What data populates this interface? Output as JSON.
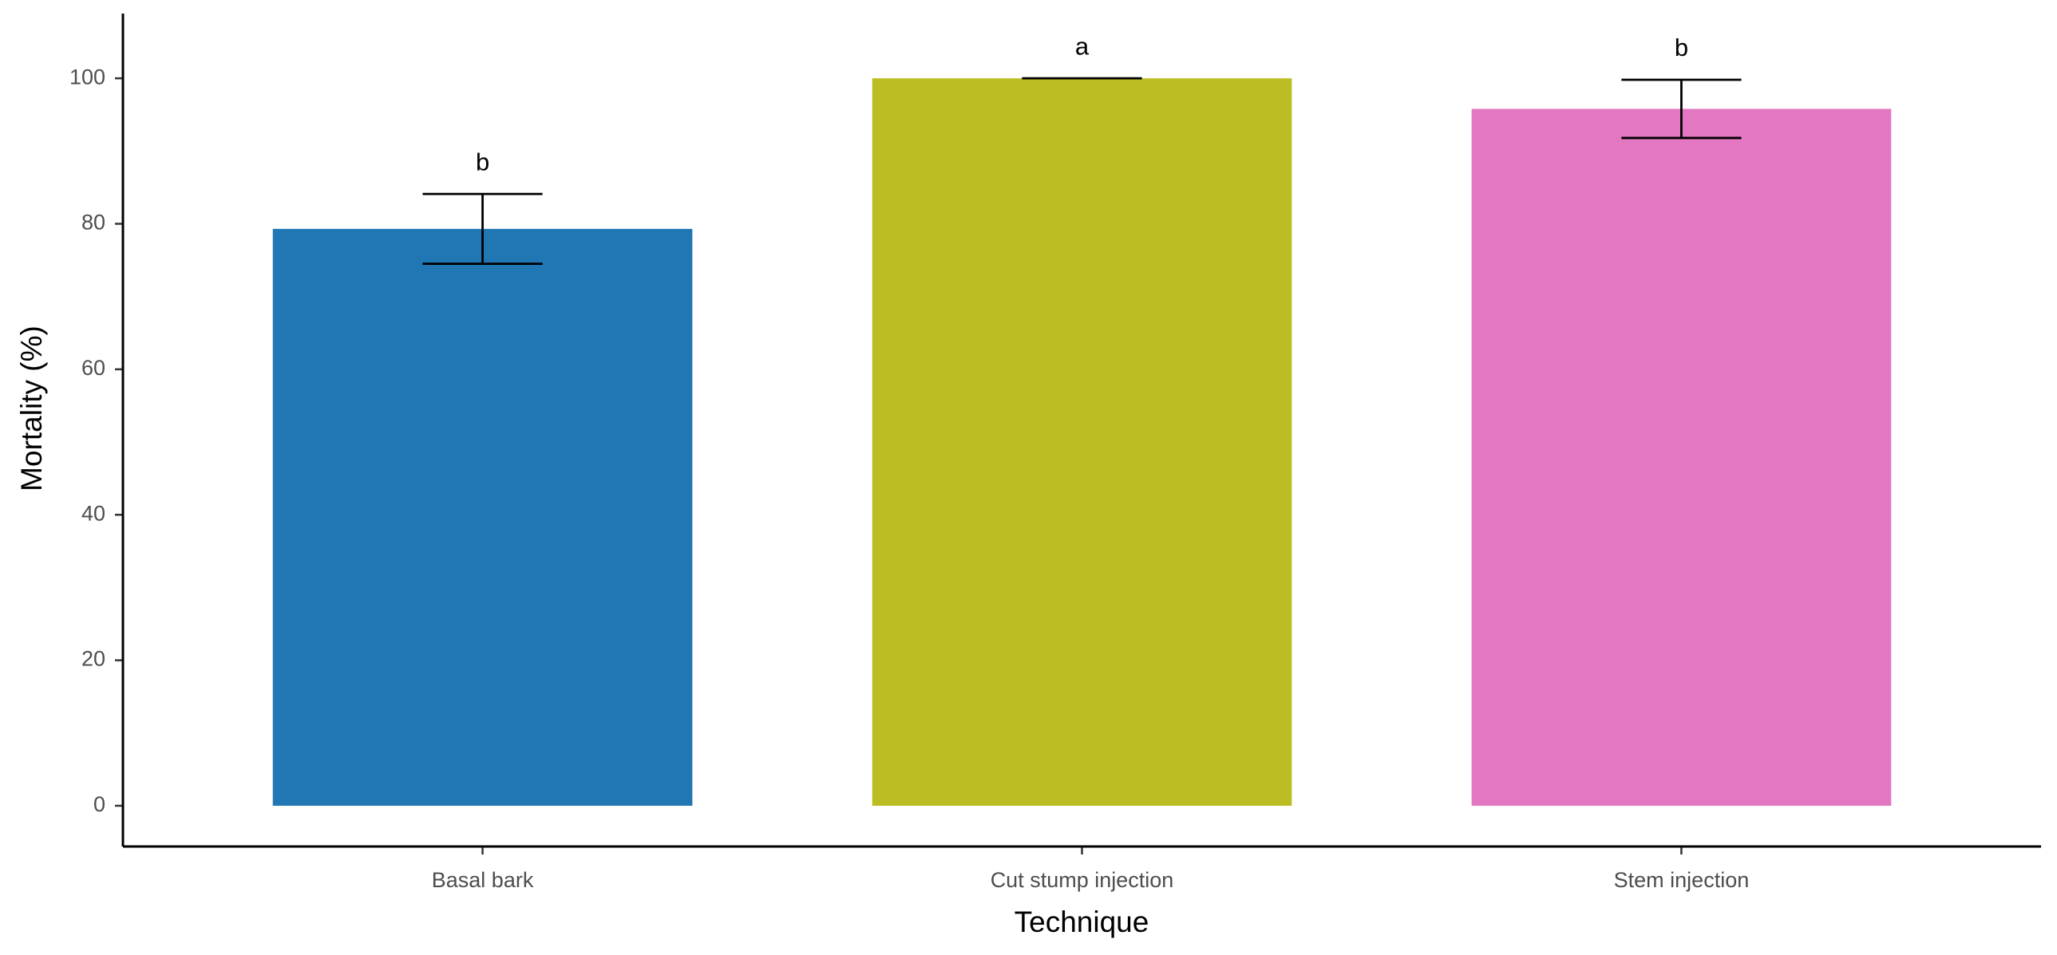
{
  "chart_data": {
    "type": "bar",
    "x_label": "Technique",
    "y_label": "Mortality (%)",
    "categories": [
      "Basal bark",
      "Cut stump injection",
      "Stem injection"
    ],
    "values": [
      79.3,
      100,
      95.8
    ],
    "errors": [
      4.8,
      0,
      4
    ],
    "letters": [
      "b",
      "a",
      "b"
    ],
    "colors": [
      "#2077b4",
      "#bcbd22",
      "#e377c2"
    ],
    "ylim": [
      -5.6,
      108.9
    ],
    "yticks": [
      0,
      20,
      40,
      60,
      80,
      100
    ],
    "grid": false
  }
}
